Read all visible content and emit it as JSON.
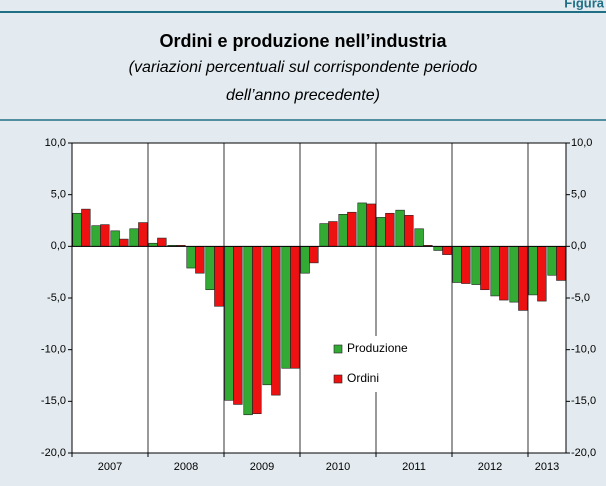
{
  "chart_data": {
    "type": "bar",
    "label": "Figura",
    "title": "Ordini e produzione nell’industria",
    "subtitle": [
      "(variazioni percentuali sul corrispondente periodo",
      "dell’anno precedente)"
    ],
    "categories": [
      "2007",
      null,
      null,
      null,
      "2008",
      null,
      null,
      null,
      "2009",
      null,
      null,
      null,
      "2010",
      null,
      null,
      null,
      "2011",
      null,
      null,
      null,
      "2012",
      null,
      null,
      null,
      "2013",
      null
    ],
    "series": [
      {
        "name": "Produzione",
        "color": "#33aa33",
        "values": [
          3.2,
          2.0,
          1.5,
          1.7,
          0.3,
          0.1,
          -2.1,
          -4.2,
          -14.9,
          -16.3,
          -13.4,
          -11.8,
          -2.6,
          2.2,
          3.1,
          4.2,
          2.8,
          3.5,
          1.7,
          -0.4,
          -3.5,
          -3.7,
          -4.8,
          -5.4,
          -4.7,
          -2.8
        ]
      },
      {
        "name": "Ordini",
        "color": "#ee1111",
        "values": [
          3.6,
          2.1,
          0.7,
          2.3,
          0.8,
          0.1,
          -2.6,
          -5.8,
          -15.3,
          -16.2,
          -14.4,
          -11.8,
          -1.6,
          2.4,
          3.3,
          4.1,
          3.2,
          3.0,
          0.1,
          -0.8,
          -3.6,
          -4.2,
          -5.2,
          -6.2,
          -5.3,
          -3.3
        ]
      }
    ],
    "ylim": [
      -20,
      10
    ],
    "yticks": [
      {
        "value": 10,
        "label": "10,0"
      },
      {
        "value": 5,
        "label": "5,0"
      },
      {
        "value": 0,
        "label": "0,0"
      },
      {
        "value": -5,
        "label": "-5,0"
      },
      {
        "value": -10,
        "label": "-10,0"
      },
      {
        "value": -15,
        "label": "-15,0"
      },
      {
        "value": -20,
        "label": "-20,0"
      }
    ]
  }
}
